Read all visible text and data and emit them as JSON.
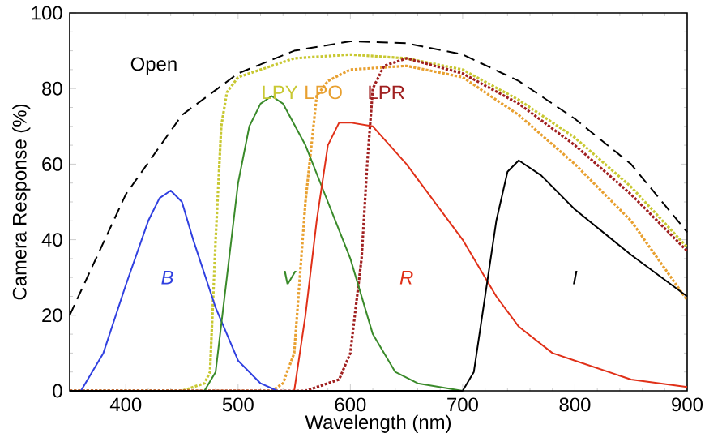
{
  "chart_data": {
    "type": "line",
    "xlabel": "Wavelength (nm)",
    "ylabel": "Camera Response (%)",
    "xlim": [
      350,
      900
    ],
    "ylim": [
      0,
      100
    ],
    "xticks": [
      400,
      500,
      600,
      700,
      800,
      900
    ],
    "yticks": [
      0,
      20,
      40,
      60,
      80,
      100
    ],
    "grid": false,
    "legend": false,
    "marker": "none",
    "series": [
      {
        "name": "Open",
        "color": "#000000",
        "line_style": "dashed",
        "x": [
          350,
          375,
          400,
          450,
          500,
          550,
          600,
          650,
          700,
          750,
          800,
          850,
          900
        ],
        "values": [
          20,
          36,
          52,
          73,
          84,
          90,
          92.5,
          92,
          89,
          82,
          72,
          60,
          42
        ]
      },
      {
        "name": "LPY",
        "color": "#c8c832",
        "line_style": "dotted",
        "x": [
          350,
          450,
          470,
          475,
          480,
          485,
          490,
          500,
          550,
          600,
          650,
          700,
          750,
          800,
          850,
          900
        ],
        "values": [
          0,
          0,
          2,
          5,
          40,
          70,
          79,
          83,
          88,
          89,
          88,
          85,
          77,
          67,
          54,
          38
        ]
      },
      {
        "name": "LPO",
        "color": "#e8a030",
        "line_style": "dotted",
        "x": [
          350,
          530,
          540,
          550,
          560,
          570,
          580,
          600,
          650,
          700,
          750,
          800,
          850,
          900
        ],
        "values": [
          0,
          0,
          2,
          10,
          50,
          78,
          82,
          85,
          86,
          83,
          73,
          60,
          45,
          24
        ]
      },
      {
        "name": "LPR",
        "color": "#a02020",
        "line_style": "dotted",
        "x": [
          350,
          560,
          590,
          600,
          610,
          615,
          620,
          630,
          650,
          700,
          750,
          800,
          850,
          900
        ],
        "values": [
          0,
          0,
          3,
          10,
          35,
          60,
          80,
          86,
          88,
          84,
          76,
          65,
          52,
          37
        ]
      },
      {
        "name": "B",
        "color": "#3040e0",
        "line_style": "solid",
        "x": [
          360,
          380,
          400,
          420,
          430,
          440,
          450,
          460,
          480,
          500,
          520,
          535
        ],
        "values": [
          0,
          10,
          28,
          45,
          51,
          53,
          50,
          40,
          22,
          8,
          2,
          0
        ]
      },
      {
        "name": "V",
        "color": "#3a8a2a",
        "line_style": "solid",
        "x": [
          350,
          470,
          480,
          490,
          500,
          510,
          520,
          530,
          540,
          560,
          580,
          600,
          620,
          640,
          660,
          700
        ],
        "values": [
          0,
          0,
          5,
          30,
          55,
          70,
          76,
          78,
          76,
          65,
          50,
          35,
          15,
          5,
          2,
          0
        ]
      },
      {
        "name": "R",
        "color": "#e03018",
        "line_style": "solid",
        "x": [
          350,
          550,
          560,
          570,
          580,
          590,
          600,
          620,
          650,
          700,
          730,
          750,
          780,
          800,
          850,
          900
        ],
        "values": [
          0,
          0,
          20,
          45,
          65,
          71,
          71,
          70,
          60,
          40,
          25,
          17,
          10,
          8,
          3,
          1
        ]
      },
      {
        "name": "I",
        "color": "#000000",
        "line_style": "solid",
        "x": [
          350,
          700,
          710,
          720,
          730,
          740,
          750,
          770,
          800,
          850,
          900
        ],
        "values": [
          0,
          0,
          5,
          25,
          45,
          58,
          61,
          57,
          48,
          36,
          25
        ]
      }
    ]
  }
}
